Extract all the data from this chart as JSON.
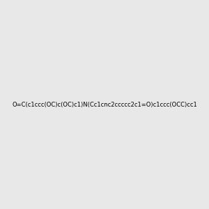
{
  "smiles": "O=C(c1ccc(OC)c(OC)c1)N(Cc1cnc2ccccc2c1=O)c1ccc(OCC)cc1",
  "title": "",
  "bg_color": "#e8e8e8",
  "figsize": [
    3.0,
    3.0
  ],
  "dpi": 100
}
